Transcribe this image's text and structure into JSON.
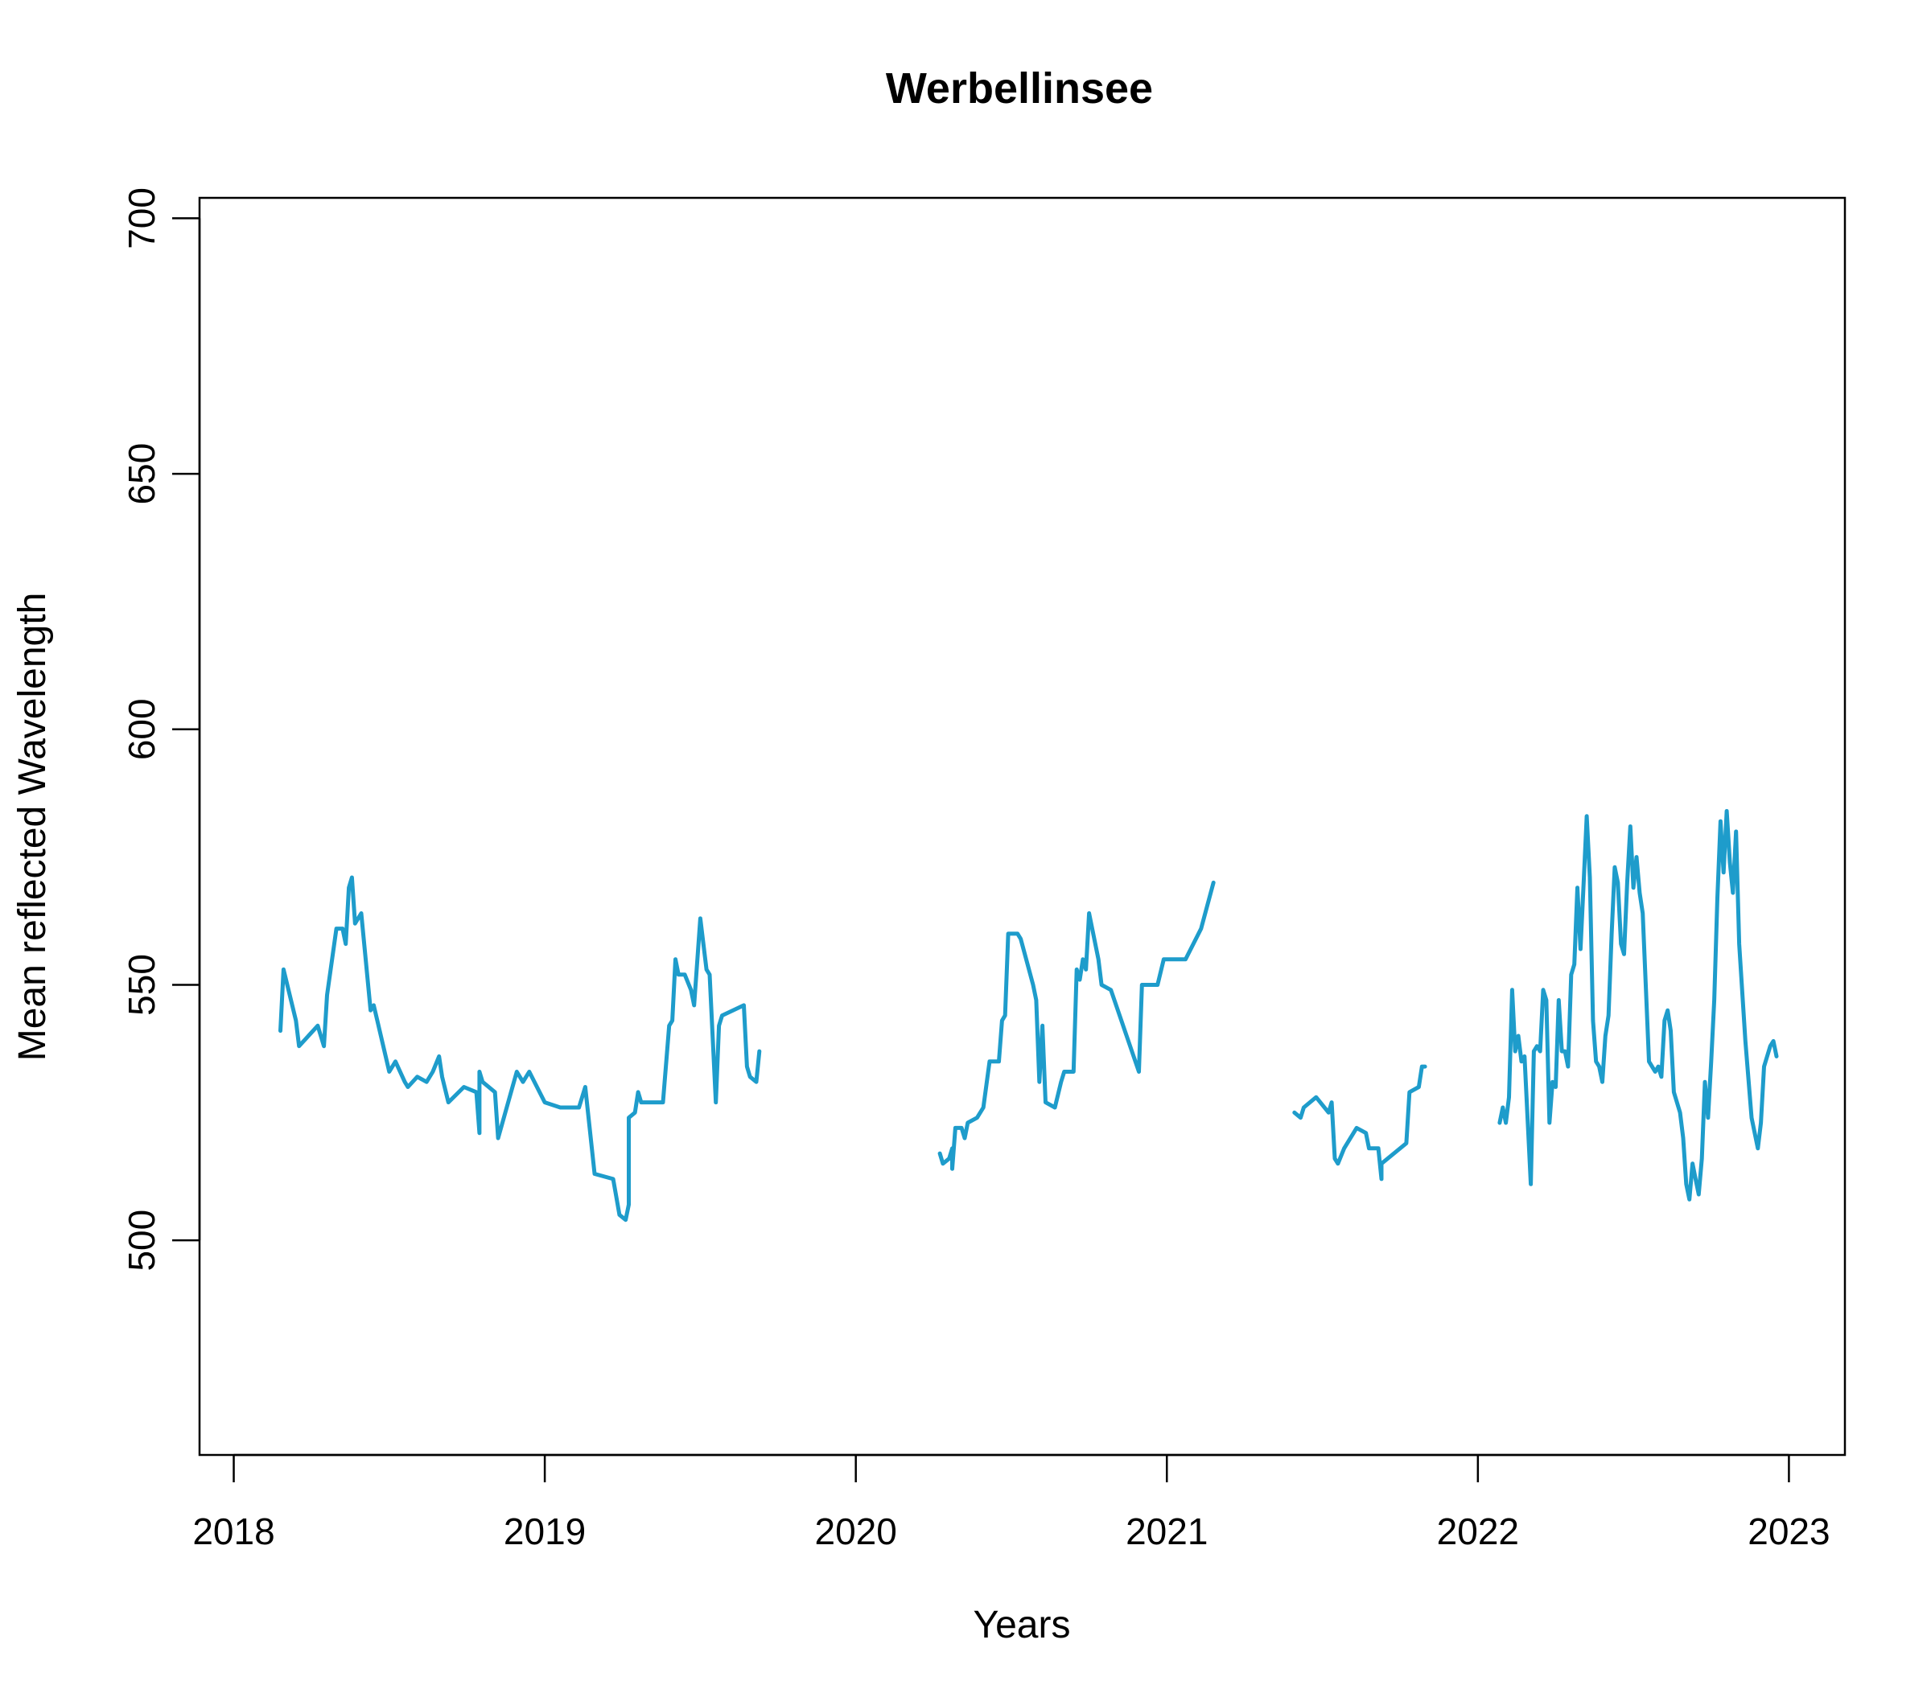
{
  "chart_data": {
    "type": "line",
    "title": "Werbellinsee",
    "xlabel": "Years",
    "ylabel": "Mean reflected Wavelength",
    "xlim": [
      2017.89,
      2023.18
    ],
    "ylim": [
      458,
      704
    ],
    "x_ticks": [
      2018,
      2019,
      2020,
      2021,
      2022,
      2023
    ],
    "y_ticks": [
      500,
      550,
      600,
      650,
      700
    ],
    "grid": false,
    "legend": "none",
    "line_color": "#1E9CCB",
    "series": [
      {
        "segments": [
          [
            [
              2018.15,
              541
            ],
            [
              2018.16,
              553
            ],
            [
              2018.2,
              543
            ],
            [
              2018.21,
              538
            ],
            [
              2018.27,
              542
            ],
            [
              2018.29,
              538
            ],
            [
              2018.3,
              548
            ],
            [
              2018.33,
              561
            ],
            [
              2018.35,
              561
            ],
            [
              2018.36,
              558
            ],
            [
              2018.37,
              569
            ],
            [
              2018.38,
              571
            ],
            [
              2018.39,
              562
            ],
            [
              2018.41,
              564
            ],
            [
              2018.44,
              545
            ],
            [
              2018.45,
              546
            ],
            [
              2018.5,
              533
            ],
            [
              2018.52,
              535
            ],
            [
              2018.55,
              531
            ],
            [
              2018.56,
              530
            ],
            [
              2018.59,
              532
            ],
            [
              2018.62,
              531
            ],
            [
              2018.64,
              533
            ],
            [
              2018.66,
              536
            ],
            [
              2018.67,
              532
            ],
            [
              2018.69,
              527
            ],
            [
              2018.74,
              530
            ],
            [
              2018.78,
              529
            ],
            [
              2018.79,
              521
            ],
            [
              2018.79,
              533
            ],
            [
              2018.8,
              531
            ],
            [
              2018.84,
              529
            ],
            [
              2018.85,
              520
            ],
            [
              2018.91,
              533
            ],
            [
              2018.93,
              531
            ],
            [
              2018.95,
              533
            ],
            [
              2019.0,
              527
            ],
            [
              2019.05,
              526
            ],
            [
              2019.11,
              526
            ],
            [
              2019.13,
              530
            ],
            [
              2019.16,
              513
            ],
            [
              2019.22,
              512
            ],
            [
              2019.24,
              505
            ],
            [
              2019.26,
              504
            ],
            [
              2019.27,
              507
            ],
            [
              2019.27,
              524
            ],
            [
              2019.29,
              525
            ],
            [
              2019.3,
              529
            ],
            [
              2019.31,
              527
            ],
            [
              2019.38,
              527
            ],
            [
              2019.4,
              542
            ],
            [
              2019.41,
              543
            ],
            [
              2019.42,
              555
            ],
            [
              2019.43,
              552
            ],
            [
              2019.45,
              552
            ],
            [
              2019.47,
              549
            ],
            [
              2019.48,
              546
            ],
            [
              2019.5,
              563
            ],
            [
              2019.52,
              553
            ],
            [
              2019.53,
              552
            ],
            [
              2019.55,
              527
            ],
            [
              2019.56,
              542
            ],
            [
              2019.57,
              544
            ],
            [
              2019.64,
              546
            ],
            [
              2019.65,
              534
            ],
            [
              2019.66,
              532
            ],
            [
              2019.68,
              531
            ],
            [
              2019.69,
              537
            ]
          ],
          [
            [
              2020.27,
              517
            ],
            [
              2020.28,
              515
            ],
            [
              2020.3,
              516
            ],
            [
              2020.31,
              518
            ],
            [
              2020.31,
              514
            ],
            [
              2020.32,
              522
            ],
            [
              2020.34,
              522
            ],
            [
              2020.35,
              520
            ],
            [
              2020.36,
              523
            ],
            [
              2020.39,
              524
            ],
            [
              2020.41,
              526
            ],
            [
              2020.43,
              535
            ],
            [
              2020.46,
              535
            ],
            [
              2020.47,
              543
            ],
            [
              2020.48,
              544
            ],
            [
              2020.49,
              560
            ],
            [
              2020.52,
              560
            ],
            [
              2020.53,
              559
            ],
            [
              2020.57,
              550
            ],
            [
              2020.58,
              547
            ],
            [
              2020.59,
              531
            ],
            [
              2020.6,
              542
            ],
            [
              2020.61,
              527
            ],
            [
              2020.64,
              526
            ],
            [
              2020.66,
              531
            ],
            [
              2020.67,
              533
            ],
            [
              2020.7,
              533
            ],
            [
              2020.71,
              553
            ],
            [
              2020.72,
              551
            ],
            [
              2020.73,
              555
            ],
            [
              2020.74,
              553
            ],
            [
              2020.75,
              564
            ],
            [
              2020.78,
              555
            ],
            [
              2020.79,
              550
            ],
            [
              2020.82,
              549
            ],
            [
              2020.91,
              533
            ],
            [
              2020.92,
              550
            ],
            [
              2020.97,
              550
            ],
            [
              2020.99,
              555
            ],
            [
              2021.06,
              555
            ],
            [
              2021.11,
              561
            ],
            [
              2021.15,
              570
            ]
          ],
          [
            [
              2021.41,
              525
            ],
            [
              2021.43,
              524
            ],
            [
              2021.44,
              526
            ],
            [
              2021.48,
              528
            ],
            [
              2021.52,
              525
            ],
            [
              2021.53,
              527
            ],
            [
              2021.54,
              516
            ],
            [
              2021.55,
              515
            ],
            [
              2021.57,
              518
            ],
            [
              2021.61,
              522
            ],
            [
              2021.64,
              521
            ],
            [
              2021.65,
              518
            ],
            [
              2021.68,
              518
            ],
            [
              2021.69,
              512
            ],
            [
              2021.69,
              515
            ],
            [
              2021.77,
              519
            ],
            [
              2021.78,
              529
            ],
            [
              2021.81,
              530
            ],
            [
              2021.82,
              534
            ],
            [
              2021.83,
              534
            ]
          ],
          [
            [
              2022.07,
              523
            ],
            [
              2022.08,
              526
            ],
            [
              2022.09,
              523
            ],
            [
              2022.1,
              528
            ],
            [
              2022.11,
              549
            ],
            [
              2022.12,
              537
            ],
            [
              2022.13,
              540
            ],
            [
              2022.14,
              535
            ],
            [
              2022.15,
              536
            ],
            [
              2022.17,
              511
            ],
            [
              2022.18,
              537
            ],
            [
              2022.19,
              538
            ],
            [
              2022.2,
              537
            ],
            [
              2022.21,
              549
            ],
            [
              2022.22,
              547
            ],
            [
              2022.23,
              523
            ],
            [
              2022.24,
              531
            ],
            [
              2022.25,
              530
            ],
            [
              2022.26,
              547
            ],
            [
              2022.27,
              537
            ],
            [
              2022.28,
              537
            ],
            [
              2022.29,
              534
            ],
            [
              2022.3,
              552
            ],
            [
              2022.31,
              554
            ],
            [
              2022.32,
              569
            ],
            [
              2022.33,
              557
            ],
            [
              2022.34,
              570
            ],
            [
              2022.35,
              583
            ],
            [
              2022.36,
              571
            ],
            [
              2022.37,
              543
            ],
            [
              2022.38,
              535
            ],
            [
              2022.39,
              534
            ],
            [
              2022.4,
              531
            ],
            [
              2022.41,
              540
            ],
            [
              2022.42,
              544
            ],
            [
              2022.43,
              560
            ],
            [
              2022.44,
              573
            ],
            [
              2022.45,
              570
            ],
            [
              2022.46,
              558
            ],
            [
              2022.47,
              556
            ],
            [
              2022.48,
              570
            ],
            [
              2022.49,
              581
            ],
            [
              2022.5,
              569
            ],
            [
              2022.51,
              575
            ],
            [
              2022.52,
              568
            ],
            [
              2022.53,
              564
            ],
            [
              2022.55,
              535
            ],
            [
              2022.56,
              534
            ],
            [
              2022.57,
              533
            ],
            [
              2022.58,
              534
            ],
            [
              2022.59,
              532
            ],
            [
              2022.6,
              543
            ],
            [
              2022.61,
              545
            ],
            [
              2022.62,
              541
            ],
            [
              2022.63,
              529
            ],
            [
              2022.65,
              525
            ],
            [
              2022.66,
              520
            ],
            [
              2022.67,
              511
            ],
            [
              2022.68,
              508
            ],
            [
              2022.69,
              515
            ],
            [
              2022.7,
              512
            ],
            [
              2022.71,
              509
            ],
            [
              2022.72,
              516
            ],
            [
              2022.73,
              531
            ],
            [
              2022.74,
              524
            ],
            [
              2022.75,
              535
            ],
            [
              2022.76,
              547
            ],
            [
              2022.77,
              567
            ],
            [
              2022.78,
              582
            ],
            [
              2022.79,
              572
            ],
            [
              2022.8,
              584
            ],
            [
              2022.81,
              574
            ],
            [
              2022.82,
              568
            ],
            [
              2022.83,
              580
            ],
            [
              2022.84,
              558
            ],
            [
              2022.86,
              539
            ],
            [
              2022.88,
              524
            ],
            [
              2022.9,
              518
            ],
            [
              2022.91,
              523
            ],
            [
              2022.92,
              534
            ],
            [
              2022.94,
              538
            ],
            [
              2022.95,
              539
            ],
            [
              2022.96,
              536
            ]
          ]
        ]
      }
    ]
  }
}
